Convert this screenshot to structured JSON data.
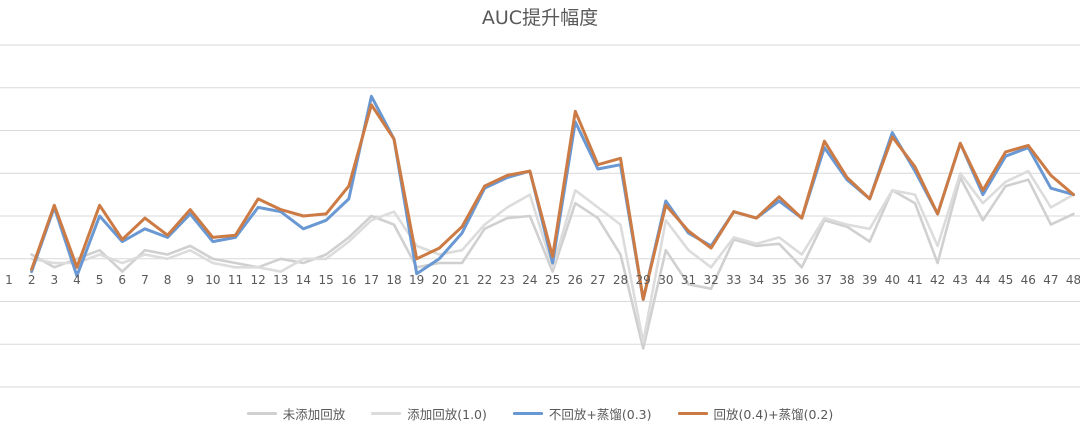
{
  "chart_data": {
    "type": "line",
    "title": "AUC提升幅度",
    "xlabel": "",
    "ylabel": "",
    "categories": [
      "1",
      "2",
      "3",
      "4",
      "5",
      "6",
      "7",
      "8",
      "9",
      "10",
      "11",
      "12",
      "13",
      "14",
      "15",
      "16",
      "17",
      "18",
      "19",
      "20",
      "21",
      "22",
      "23",
      "24",
      "25",
      "26",
      "27",
      "28",
      "29",
      "30",
      "31",
      "32",
      "33",
      "34",
      "35",
      "36",
      "37",
      "38",
      "39",
      "40",
      "41",
      "42",
      "43",
      "44",
      "45",
      "46",
      "47",
      "48"
    ],
    "ylim": [
      -3,
      5
    ],
    "grid": true,
    "legend_position": "bottom",
    "series": [
      {
        "name": "未添加回放",
        "color": "#d0d0d0",
        "values": [
          null,
          0.1,
          -0.2,
          0.0,
          0.2,
          -0.3,
          0.2,
          0.1,
          0.3,
          0.0,
          -0.1,
          -0.2,
          0.0,
          -0.1,
          0.1,
          0.5,
          1.0,
          0.8,
          -0.2,
          -0.1,
          -0.1,
          0.7,
          0.95,
          1.0,
          -0.3,
          1.3,
          0.95,
          0.1,
          -2.1,
          0.2,
          -0.6,
          -0.7,
          0.45,
          0.3,
          0.35,
          -0.2,
          0.9,
          0.75,
          0.4,
          1.6,
          1.3,
          -0.1,
          1.9,
          0.9,
          1.7,
          1.85,
          0.8,
          1.05
        ]
      },
      {
        "name": "添加回放(1.0)",
        "color": "#dcdcdc",
        "values": [
          null,
          0.0,
          -0.1,
          -0.1,
          0.1,
          -0.1,
          0.1,
          0.0,
          0.2,
          -0.1,
          -0.2,
          -0.2,
          -0.3,
          0.0,
          0.0,
          0.4,
          0.9,
          1.1,
          0.3,
          0.1,
          0.2,
          0.8,
          1.2,
          1.5,
          -0.2,
          1.6,
          1.2,
          0.8,
          -1.95,
          0.9,
          0.2,
          -0.2,
          0.5,
          0.35,
          0.5,
          0.1,
          0.95,
          0.8,
          0.7,
          1.6,
          1.5,
          0.3,
          2.0,
          1.3,
          1.8,
          2.05,
          1.2,
          1.5
        ]
      },
      {
        "name": "不回放+蒸馏(0.3)",
        "color": "#6a98d2",
        "values": [
          null,
          -0.3,
          1.2,
          -0.4,
          1.0,
          0.4,
          0.7,
          0.5,
          1.05,
          0.4,
          0.5,
          1.2,
          1.1,
          0.7,
          0.9,
          1.4,
          3.8,
          2.8,
          -0.35,
          0.0,
          0.6,
          1.65,
          1.9,
          2.05,
          -0.1,
          3.2,
          2.1,
          2.2,
          -0.95,
          1.35,
          0.6,
          0.3,
          1.1,
          0.95,
          1.35,
          0.95,
          2.6,
          1.85,
          1.4,
          2.95,
          2.05,
          1.05,
          2.7,
          1.5,
          2.4,
          2.6,
          1.65,
          1.5
        ]
      },
      {
        "name": "回放(0.4)+蒸馏(0.2)",
        "color": "#cc7b45",
        "values": [
          null,
          -0.25,
          1.25,
          -0.2,
          1.25,
          0.45,
          0.95,
          0.55,
          1.15,
          0.5,
          0.55,
          1.4,
          1.15,
          1.0,
          1.05,
          1.7,
          3.6,
          2.8,
          0.0,
          0.25,
          0.75,
          1.7,
          1.95,
          2.05,
          0.05,
          3.45,
          2.2,
          2.35,
          -0.95,
          1.25,
          0.65,
          0.25,
          1.1,
          0.95,
          1.45,
          0.95,
          2.75,
          1.9,
          1.4,
          2.85,
          2.15,
          1.05,
          2.7,
          1.6,
          2.5,
          2.65,
          1.95,
          1.5
        ]
      }
    ]
  }
}
